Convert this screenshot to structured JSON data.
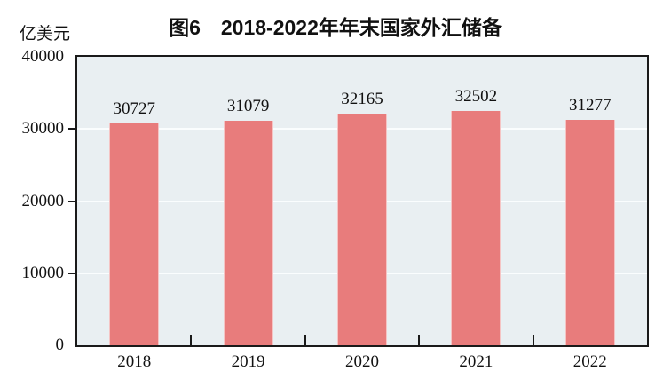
{
  "chart_data": {
    "type": "bar",
    "title": "图6　2018-2022年年末国家外汇储备",
    "ylabel": "亿美元",
    "xlabel": "",
    "categories": [
      "2018",
      "2019",
      "2020",
      "2021",
      "2022"
    ],
    "values": [
      30727,
      31079,
      32165,
      32502,
      31277
    ],
    "ylim": [
      0,
      40000
    ],
    "yticks": [
      0,
      10000,
      20000,
      30000,
      40000
    ],
    "grid": true,
    "legend_position": "none",
    "colors": {
      "bar": "#e87c7c",
      "bar_edge": "#f5b9b9",
      "plot_background": "#e9eff2",
      "gridline": "#fafdfe",
      "axis": "#1a1a1a",
      "text": "#111111"
    }
  }
}
